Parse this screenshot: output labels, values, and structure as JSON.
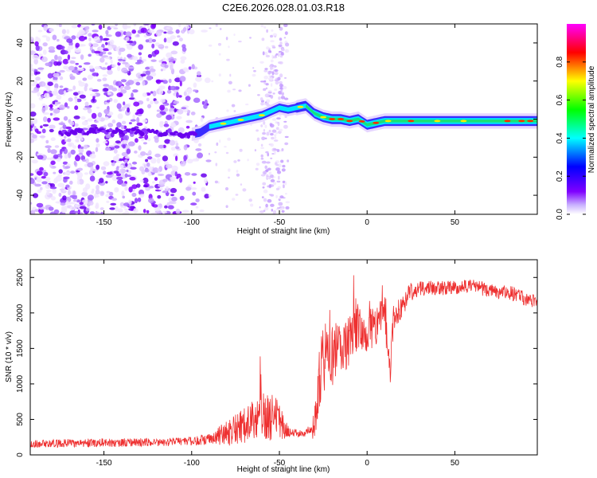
{
  "page": {
    "title": "C2E6.2026.028.01.03.R18"
  },
  "chart_data": [
    {
      "type": "heatmap",
      "name": "spectrogram",
      "title": "C2E6.2026.028.01.03.R18",
      "xlabel": "Height of straight line (km)",
      "ylabel": "Frequency (Hz)",
      "xlim": [
        -192,
        97
      ],
      "ylim": [
        -50,
        50
      ],
      "xticks": [
        -150,
        -100,
        -50,
        0,
        50
      ],
      "yticks": [
        -40,
        -20,
        0,
        20,
        40
      ],
      "colorbar": {
        "label": "Normalized spectral amplitude",
        "ticks": [
          0.0,
          0.2,
          0.4,
          0.6,
          0.8
        ],
        "range": [
          0,
          1
        ],
        "colormap": [
          "#ffffff",
          "#7f00ff",
          "#0000ff",
          "#00ffff",
          "#00ff00",
          "#ffff00",
          "#ff0000",
          "#ff00ff"
        ]
      },
      "ridge": {
        "x": [
          -192,
          -165,
          -140,
          -120,
          -100,
          -95,
          -90,
          -85,
          -80,
          -70,
          -60,
          -55,
          -50,
          -45,
          -40,
          -35,
          -30,
          -25,
          -20,
          -15,
          -10,
          -5,
          0,
          10,
          20,
          30,
          40,
          50,
          60,
          70,
          80,
          90,
          97
        ],
        "frequency_hz": [
          -6,
          -7,
          -6,
          -7,
          -8,
          -7,
          -4,
          -3,
          -2,
          0,
          2,
          4,
          6,
          5,
          6,
          7,
          3,
          1,
          0,
          0,
          -1,
          0,
          -3,
          -1,
          -1,
          -1,
          -1,
          -1,
          -1,
          -1,
          -1,
          -1,
          -1
        ]
      },
      "noise_regions": {
        "dense_scatter_x_range": [
          -192,
          -90
        ],
        "sparse_scatter_x_range": [
          -60,
          -45
        ]
      }
    },
    {
      "type": "line",
      "name": "snr",
      "title": "",
      "xlabel": "Height of straight line (km)",
      "ylabel": "SNR (10 * v/v)",
      "xlim": [
        -192,
        97
      ],
      "ylim": [
        0,
        2750
      ],
      "xticks": [
        -150,
        -100,
        -50,
        0,
        50
      ],
      "yticks": [
        0,
        500,
        1000,
        1500,
        2000,
        2500
      ],
      "color": "#ee3030",
      "series": [
        {
          "name": "SNR",
          "x": [
            -192,
            -180,
            -160,
            -140,
            -120,
            -100,
            -90,
            -80,
            -75,
            -70,
            -65,
            -60,
            -55,
            -50,
            -45,
            -40,
            -35,
            -30,
            -28,
            -25,
            -22,
            -20,
            -15,
            -10,
            -5,
            0,
            5,
            10,
            13,
            15,
            20,
            25,
            30,
            40,
            50,
            60,
            70,
            80,
            90,
            97
          ],
          "y": [
            150,
            160,
            170,
            175,
            180,
            190,
            230,
            300,
            350,
            420,
            500,
            550,
            520,
            460,
            330,
            300,
            300,
            400,
            900,
            1300,
            1250,
            1400,
            1500,
            1600,
            1800,
            1700,
            1800,
            2000,
            1100,
            1900,
            2100,
            2300,
            2350,
            2350,
            2350,
            2400,
            2300,
            2300,
            2200,
            2150
          ],
          "noise_amplitude": [
            55,
            55,
            60,
            60,
            60,
            65,
            80,
            180,
            220,
            260,
            280,
            320,
            350,
            300,
            80,
            60,
            60,
            220,
            450,
            550,
            500,
            450,
            380,
            350,
            300,
            250,
            250,
            250,
            200,
            200,
            150,
            130,
            110,
            100,
            100,
            100,
            100,
            100,
            100,
            100
          ]
        }
      ]
    }
  ]
}
